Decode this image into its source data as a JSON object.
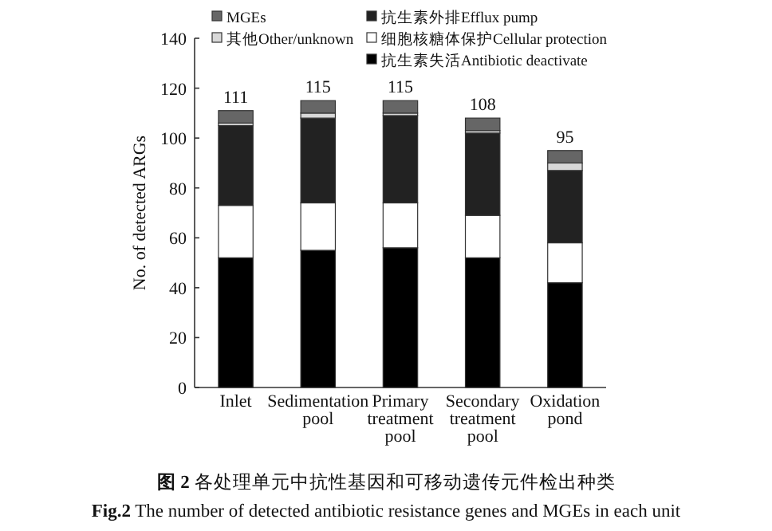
{
  "chart_data": {
    "type": "bar",
    "stacked": true,
    "title": "**图 2**  各处理单元中抗性基因和可移动遗传元件检出种类",
    "subtitle": "**Fig.2**  The number of detected antibiotic resistance genes and MGEs in each unit",
    "ylabel": "No. of detected ARGs",
    "categories": [
      "Inlet",
      "Sedimentation pool",
      "Primary treatment pool",
      "Secondary treatment pool",
      "Oxidation pond"
    ],
    "series": [
      {
        "name": "抗生素失活Antibiotic deactivate",
        "color": "#000000",
        "values": [
          52,
          55,
          56,
          52,
          42
        ]
      },
      {
        "name": "细胞核糖体保护Cellular protection",
        "color": "#ffffff",
        "values": [
          21,
          19,
          18,
          17,
          16
        ]
      },
      {
        "name": "抗生素外排Efflux pump",
        "color": "#222222",
        "values": [
          32,
          34,
          35,
          33,
          29
        ]
      },
      {
        "name": "其他Other/unknown",
        "color": "#d8d8d8",
        "values": [
          1,
          2,
          1,
          1,
          3
        ]
      },
      {
        "name": "MGEs",
        "color": "#666666",
        "values": [
          5,
          5,
          5,
          5,
          5
        ]
      }
    ],
    "totals": [
      "111",
      "115",
      "115",
      "108",
      "95"
    ],
    "ylim": [
      0,
      140
    ],
    "yticks": [
      0,
      20,
      40,
      60,
      80,
      100,
      120,
      140
    ],
    "legend": "top",
    "grid": false
  }
}
